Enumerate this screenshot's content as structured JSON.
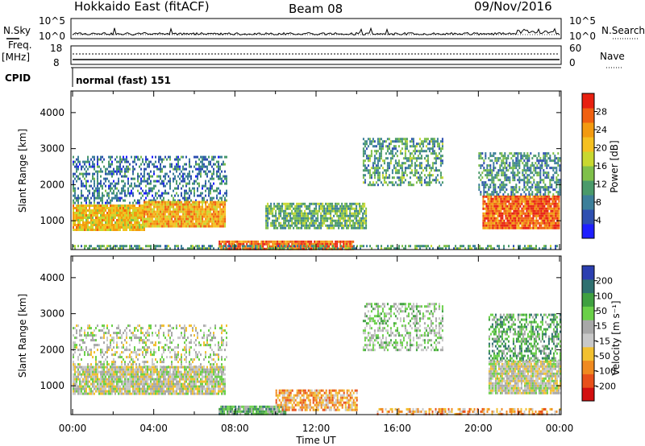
{
  "header": {
    "station": "Hokkaido East (fitACF)",
    "beam": "Beam 08",
    "date": "09/Nov/2016"
  },
  "params": {
    "nsky_label": "N.Sky",
    "nsky_top": "10^5",
    "nsky_bottom": "10^0",
    "nsearch_label": "N.Search",
    "nsearch_top": "10^5",
    "nsearch_bottom": "10^0",
    "freq_label": "Freq.",
    "freq_unit": "[MHz]",
    "freq_top": "18",
    "freq_bottom": "8",
    "nave_label": "Nave",
    "nave_top": "60",
    "nave_bottom": "0",
    "cpid_label": "CPID",
    "cpid_value": "normal (fast) 151"
  },
  "chart_data": [
    {
      "type": "heatmap",
      "name": "power",
      "ylabel": "Slant Range [km]",
      "ylim": [
        200,
        4600
      ],
      "yticks": [
        "1000",
        "2000",
        "3000",
        "4000"
      ],
      "xticks": [],
      "xlim_hours": [
        0,
        24
      ],
      "colorbar": {
        "label": "Power [dB]",
        "ticks": [
          "4",
          "8",
          "12",
          "16",
          "20",
          "24",
          "28"
        ],
        "range": [
          0,
          32
        ],
        "colors": [
          "#1e1eff",
          "#2e4fb0",
          "#3c7f9a",
          "#4a9a6a",
          "#7fc04a",
          "#c8d830",
          "#f5c020",
          "#f39a10",
          "#f06010",
          "#e82010"
        ]
      },
      "echo_regions": [
        {
          "t0": 0.0,
          "t1": 7.6,
          "r0": 1500,
          "r1": 2800,
          "level": 0.25,
          "density": 0.45
        },
        {
          "t0": 0.0,
          "t1": 3.5,
          "r0": 750,
          "r1": 1450,
          "level": 0.65,
          "density": 0.95
        },
        {
          "t0": 3.5,
          "t1": 7.5,
          "r0": 850,
          "r1": 1550,
          "level": 0.7,
          "density": 0.95
        },
        {
          "t0": 7.2,
          "t1": 13.8,
          "r0": 200,
          "r1": 450,
          "level": 0.85,
          "density": 0.95
        },
        {
          "t0": 9.5,
          "t1": 14.5,
          "r0": 800,
          "r1": 1500,
          "level": 0.4,
          "density": 0.8
        },
        {
          "t0": 14.3,
          "t1": 18.2,
          "r0": 2000,
          "r1": 3300,
          "level": 0.35,
          "density": 0.55
        },
        {
          "t0": 20.2,
          "t1": 24.0,
          "r0": 800,
          "r1": 1700,
          "level": 0.85,
          "density": 0.95
        },
        {
          "t0": 20.0,
          "t1": 24.0,
          "r0": 1700,
          "r1": 2900,
          "level": 0.3,
          "density": 0.55
        },
        {
          "t0": 0.0,
          "t1": 24.0,
          "r0": 200,
          "r1": 330,
          "level": 0.35,
          "density": 0.5
        }
      ]
    },
    {
      "type": "heatmap",
      "name": "velocity",
      "ylabel": "Slant Range [km]",
      "ylim": [
        200,
        4600
      ],
      "yticks": [
        "1000",
        "2000",
        "3000",
        "4000"
      ],
      "xticks": [
        "00:00",
        "04:00",
        "08:00",
        "12:00",
        "16:00",
        "20:00",
        "00:00"
      ],
      "xlabel": "Time UT",
      "xlim_hours": [
        0,
        24
      ],
      "colorbar": {
        "label": "Velocity [m s⁻¹]",
        "ticks": [
          "200",
          "100",
          "50",
          "15",
          "-15",
          "-50",
          "-100",
          "-200"
        ],
        "range": [
          -250,
          250
        ],
        "colors": [
          "#d20f0f",
          "#e8501a",
          "#f08a20",
          "#f2c030",
          "#c8c8c8",
          "#a8a8a8",
          "#6ad048",
          "#3fa040",
          "#2e7070",
          "#2b3fb0"
        ]
      },
      "echo_regions": [
        {
          "t0": 0.0,
          "t1": 7.6,
          "r0": 1500,
          "r1": 2700,
          "level": 0.52,
          "density": 0.35
        },
        {
          "t0": 0.0,
          "t1": 7.5,
          "r0": 750,
          "r1": 1550,
          "level": 0.5,
          "density": 0.9
        },
        {
          "t0": 7.2,
          "t1": 10.5,
          "r0": 200,
          "r1": 450,
          "level": 0.7,
          "density": 0.9
        },
        {
          "t0": 10.0,
          "t1": 14.0,
          "r0": 300,
          "r1": 900,
          "level": 0.3,
          "density": 0.8
        },
        {
          "t0": 14.3,
          "t1": 18.2,
          "r0": 2000,
          "r1": 3300,
          "level": 0.58,
          "density": 0.45
        },
        {
          "t0": 20.5,
          "t1": 24.0,
          "r0": 1700,
          "r1": 3000,
          "level": 0.7,
          "density": 0.55
        },
        {
          "t0": 20.5,
          "t1": 24.0,
          "r0": 800,
          "r1": 1700,
          "level": 0.5,
          "density": 0.9
        },
        {
          "t0": 15.0,
          "t1": 24.0,
          "r0": 200,
          "r1": 380,
          "level": 0.3,
          "density": 0.5
        }
      ]
    }
  ]
}
